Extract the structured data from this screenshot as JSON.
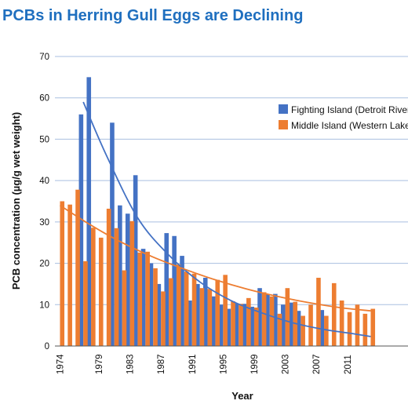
{
  "chart_data": {
    "type": "bar",
    "title": "PCBs in Herring Gull Eggs are Declining",
    "xlabel": "Year",
    "ylabel": "PCB concentration (µg/g wet weight)",
    "ylim": [
      0,
      70
    ],
    "yticks": [
      "0",
      "10",
      "20",
      "30",
      "40",
      "50",
      "60",
      "70"
    ],
    "grid": true,
    "legend_position": "top-right",
    "xtick_labels": [
      "1974",
      "1979",
      "1983",
      "1987",
      "1991",
      "1995",
      "1999",
      "2003",
      "2007",
      "2011"
    ],
    "years": [
      1974,
      1975,
      1976,
      1977,
      1978,
      1979,
      1980,
      1981,
      1982,
      1983,
      1984,
      1985,
      1986,
      1987,
      1988,
      1989,
      1990,
      1991,
      1992,
      1993,
      1994,
      1995,
      1996,
      1997,
      1998,
      1999,
      2000,
      2001,
      2002,
      2003,
      2004,
      2005,
      2006,
      2007,
      2008,
      2009,
      2010,
      2011,
      2012,
      2013,
      2014
    ],
    "series": [
      {
        "name": "Fighting Island (Detroit River)",
        "color": "#4472C4",
        "values": [
          null,
          null,
          null,
          56,
          65,
          null,
          null,
          54,
          34,
          32,
          41.3,
          23.5,
          20,
          15,
          27.3,
          26.6,
          21.8,
          11,
          15,
          16.5,
          12,
          10,
          9,
          10.3,
          10.2,
          9.5,
          14,
          12.5,
          12.6,
          10,
          10.5,
          8.5,
          null,
          null,
          8.7,
          null,
          null,
          null,
          null,
          null,
          null
        ]
      },
      {
        "name": "Middle Island (Western Lake Erie)",
        "color": "#ED7D31",
        "values": [
          35,
          34.2,
          37.8,
          20.5,
          28.6,
          26.2,
          33.2,
          28.5,
          18.3,
          30.2,
          22.6,
          22.8,
          18.8,
          13.2,
          16.4,
          19.7,
          18,
          17.5,
          14,
          13.8,
          16,
          17.2,
          10.8,
          10.2,
          11.6,
          9.3,
          13,
          12,
          7.8,
          14,
          10.7,
          7.3,
          10,
          16.5,
          7.3,
          15.2,
          11,
          8.2,
          10,
          7.8,
          9
        ]
      }
    ],
    "trendlines": [
      {
        "series": "Fighting Island (Detroit River)",
        "color": "#4472C4",
        "x": [
          1977,
          1980,
          1984,
          1988,
          1992,
          1996,
          2000,
          2004,
          2008,
          2012,
          2014
        ],
        "y": [
          59,
          46,
          31,
          22,
          15.5,
          11,
          8,
          5.6,
          4,
          2.9,
          2.3
        ]
      },
      {
        "series": "Middle Island (Western Lake Erie)",
        "color": "#ED7D31",
        "x": [
          1974,
          1978,
          1982,
          1986,
          1990,
          1994,
          1998,
          2002,
          2006,
          2010,
          2014
        ],
        "y": [
          34,
          29.2,
          25,
          21.5,
          18.6,
          16,
          13.8,
          12,
          10.5,
          9.3,
          8.5
        ]
      }
    ],
    "colors": {
      "title": "#1F6FBF",
      "grid": "#A9BFE0"
    }
  }
}
